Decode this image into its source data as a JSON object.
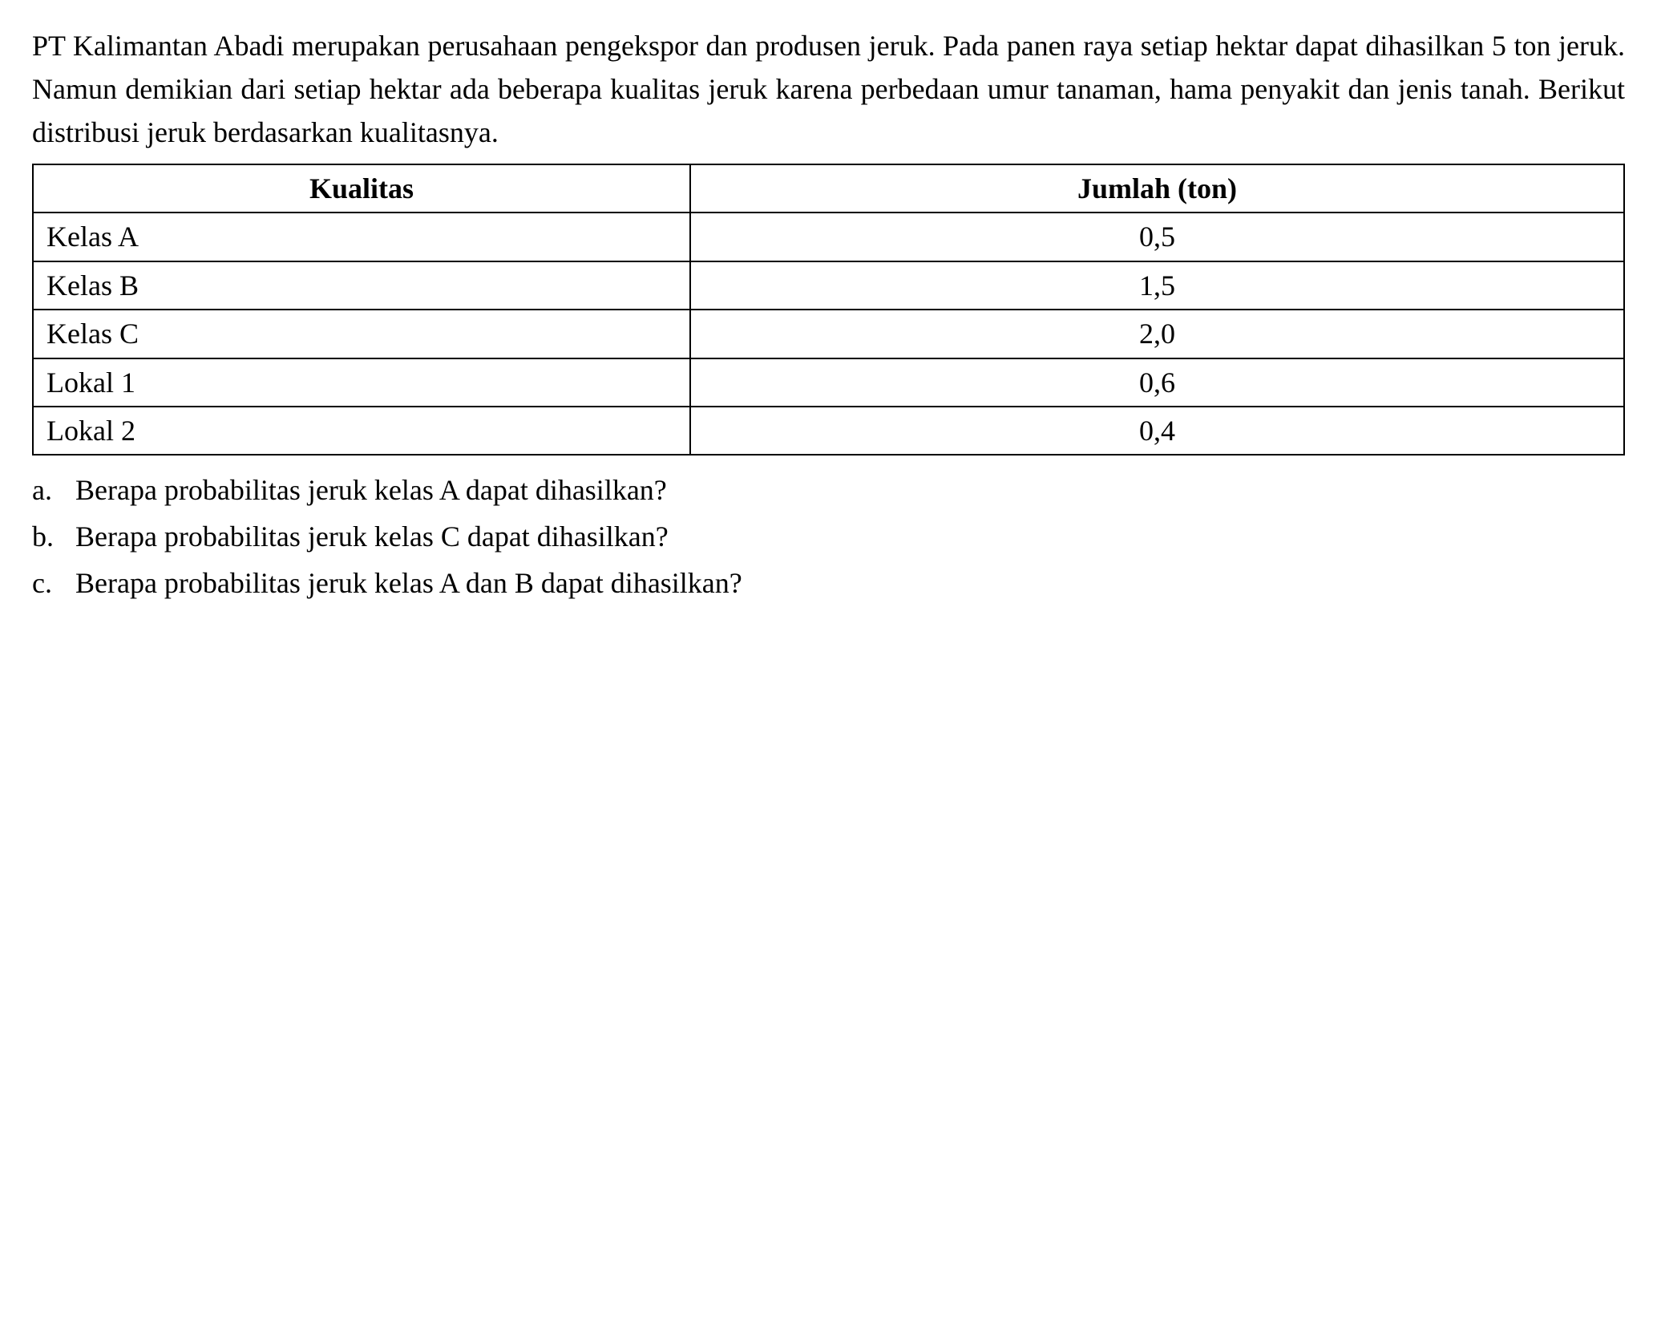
{
  "paragraph": "PT Kalimantan Abadi merupakan perusahaan pengekspor dan produsen jeruk. Pada panen raya setiap hektar dapat dihasilkan 5 ton jeruk. Namun demikian dari setiap hektar ada beberapa kualitas jeruk karena perbedaan umur tanaman, hama penyakit dan jenis tanah. Berikut distribusi jeruk berdasarkan kualitasnya.",
  "table": {
    "columns": [
      "Kualitas",
      "Jumlah (ton)"
    ],
    "rows": [
      {
        "quality": "Kelas A",
        "amount": "0,5"
      },
      {
        "quality": "Kelas B",
        "amount": "1,5"
      },
      {
        "quality": "Kelas C",
        "amount": "2,0"
      },
      {
        "quality": "Lokal 1",
        "amount": "0,6"
      },
      {
        "quality": "Lokal 2",
        "amount": "0,4"
      }
    ]
  },
  "questions": [
    {
      "marker": "a.",
      "text": "Berapa probabilitas jeruk kelas A dapat dihasilkan?"
    },
    {
      "marker": "b.",
      "text": "Berapa probabilitas jeruk kelas C dapat dihasilkan?"
    },
    {
      "marker": "c.",
      "text": "Berapa probabilitas jeruk kelas A dan B dapat dihasilkan?"
    }
  ]
}
